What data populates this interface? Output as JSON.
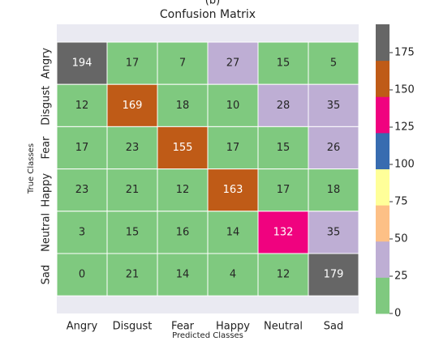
{
  "chart_data": {
    "type": "heatmap",
    "title": "Confusion Matrix",
    "subtitle": "(b)",
    "xlabel": "Predicted Classes",
    "ylabel": "True Classes",
    "x_categories": [
      "Angry",
      "Disgust",
      "Fear",
      "Happy",
      "Neutral",
      "Sad"
    ],
    "y_categories": [
      "Angry",
      "Disgust",
      "Fear",
      "Happy",
      "Neutral",
      "Sad"
    ],
    "values": [
      [
        194,
        17,
        7,
        27,
        15,
        5
      ],
      [
        12,
        169,
        18,
        10,
        28,
        35
      ],
      [
        17,
        23,
        155,
        17,
        15,
        26
      ],
      [
        23,
        21,
        12,
        163,
        17,
        18
      ],
      [
        3,
        15,
        16,
        14,
        132,
        35
      ],
      [
        0,
        21,
        14,
        4,
        12,
        179
      ]
    ],
    "colors": [
      "#7fc97f",
      "#beaed4",
      "#fdc086",
      "#ffff99",
      "#386cb0",
      "#f0027f",
      "#bf5b17",
      "#666666"
    ],
    "clim": [
      0,
      194
    ],
    "cticks": [
      0,
      25,
      50,
      75,
      100,
      125,
      150,
      175
    ]
  }
}
